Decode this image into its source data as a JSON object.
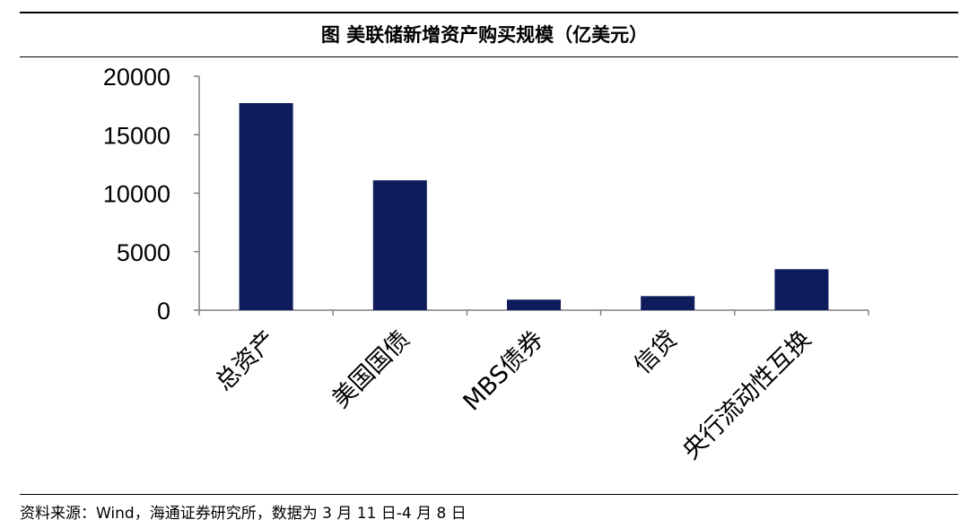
{
  "header": {
    "title": "图 美联储新增资产购买规模（亿美元）"
  },
  "footer": {
    "source": "资料来源：Wind，海通证券研究所，数据为 3 月 11 日-4 月 8 日"
  },
  "chart_data": {
    "type": "bar",
    "categories": [
      "总资产",
      "美国国债",
      "MBS债券",
      "信贷",
      "央行流动性互换"
    ],
    "series": [
      {
        "values": [
          17700,
          11100,
          900,
          1200,
          3500
        ]
      }
    ],
    "yticks": [
      0,
      5000,
      10000,
      15000,
      20000
    ],
    "ylim": [
      0,
      20000
    ],
    "xlabel": "",
    "ylabel": "",
    "grid": false,
    "legend": "none",
    "colors": {
      "bar": "#0e1c5c",
      "axis": "#808080"
    }
  }
}
